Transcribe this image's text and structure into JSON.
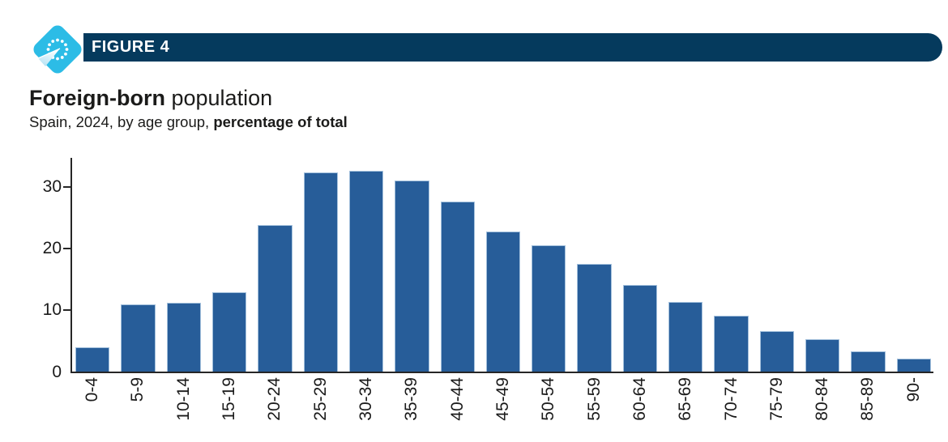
{
  "header": {
    "badge_label": "FIGURE 4",
    "badge_color": "#053a5d",
    "logo_icon": "eu-demography-diamond-logo",
    "logo_color": "#2cbce6"
  },
  "title": {
    "bold": "Foreign-born",
    "regular": " population"
  },
  "subtitle": {
    "regular": "Spain, 2024, by age group, ",
    "bold": "percentage of total"
  },
  "colors": {
    "bar": "#275d99",
    "bar_edge": "#a3c0dc",
    "axis": "#262626",
    "header_navy": "#053a5d",
    "logo_cyan": "#2cbce6"
  },
  "chart_data": {
    "type": "bar",
    "title": "Foreign-born population",
    "subtitle": "Spain, 2024, by age group, percentage of total",
    "xlabel": "",
    "ylabel": "",
    "categories": [
      "0-4",
      "5-9",
      "10-14",
      "15-19",
      "20-24",
      "25-29",
      "30-34",
      "35-39",
      "40-44",
      "45-49",
      "50-54",
      "55-59",
      "60-64",
      "65-69",
      "70-74",
      "75-79",
      "80-84",
      "85-89",
      "90-"
    ],
    "values": [
      3.9,
      10.9,
      11.1,
      12.9,
      23.8,
      32.3,
      32.5,
      30.9,
      27.5,
      22.7,
      20.4,
      17.5,
      14.0,
      11.3,
      9.1,
      6.6,
      5.3,
      3.3,
      2.1
    ],
    "yticks": [
      0,
      10,
      20,
      30
    ],
    "ylim": [
      0,
      33.3
    ],
    "grid": false,
    "legend": false,
    "x_tick_rotation": -90,
    "bar_color": "#275d99"
  }
}
